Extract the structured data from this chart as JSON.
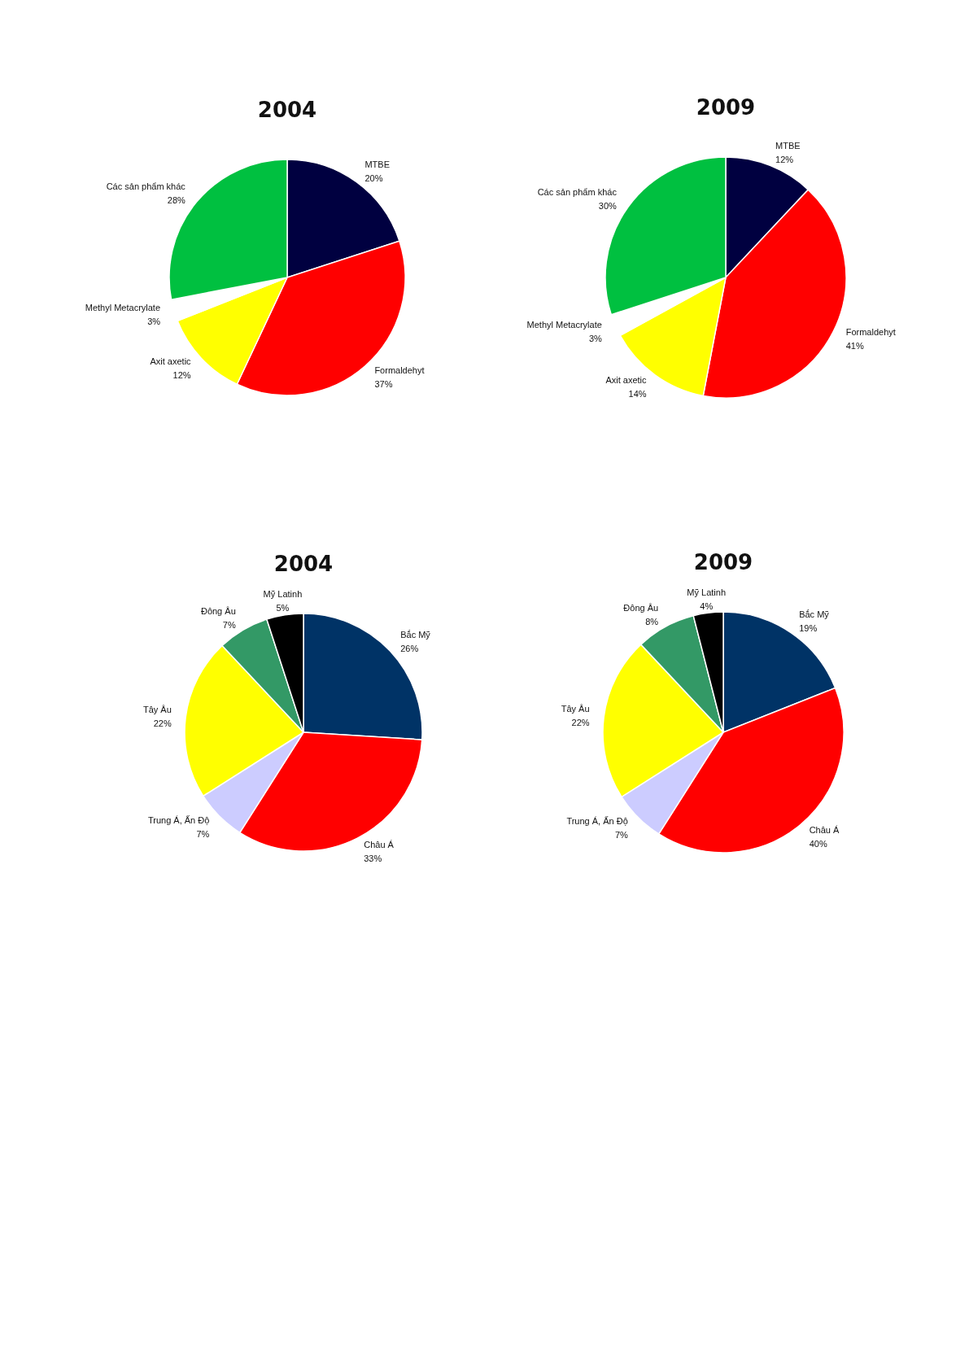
{
  "chart_data": [
    {
      "type": "pie",
      "title": "2004",
      "categories": [
        "MTBE",
        "Formaldehyt",
        "Axit axetic",
        "Methyl Metacrylate",
        "Các sản phẩm khác"
      ],
      "values": [
        20,
        37,
        12,
        3,
        28
      ],
      "value_labels": [
        "20%",
        "37%",
        "12%",
        "3%",
        "28%"
      ],
      "colors": [
        "#000040",
        "#ff0000",
        "#ffff00",
        "#ffffff",
        "#00c040"
      ]
    },
    {
      "type": "pie",
      "title": "2009",
      "categories": [
        "MTBE",
        "Formaldehyt",
        "Axit axetic",
        "Methyl Metacrylate",
        "Các sản phẩm khác"
      ],
      "values": [
        12,
        41,
        14,
        3,
        30
      ],
      "value_labels": [
        "12%",
        "41%",
        "14%",
        "3%",
        "30%"
      ],
      "colors": [
        "#000040",
        "#ff0000",
        "#ffff00",
        "#ffffff",
        "#00c040"
      ]
    },
    {
      "type": "pie",
      "title": "2004",
      "categories": [
        "Bắc Mỹ",
        "Châu Á",
        "Trung Á, Ấn Độ",
        "Tây Âu",
        "Đông Âu",
        "Mỹ Latinh"
      ],
      "values": [
        26,
        33,
        7,
        22,
        7,
        5
      ],
      "value_labels": [
        "26%",
        "33%",
        "7%",
        "22%",
        "7%",
        "5%"
      ],
      "colors": [
        "#003366",
        "#ff0000",
        "#ccccff",
        "#ffff00",
        "#339966",
        "#000000"
      ]
    },
    {
      "type": "pie",
      "title": "2009",
      "categories": [
        "Bắc Mỹ",
        "Châu Á",
        "Trung Á, Ấn Độ",
        "Tây Âu",
        "Đông Âu",
        "Mỹ Latinh"
      ],
      "values": [
        19,
        40,
        7,
        22,
        8,
        4
      ],
      "value_labels": [
        "19%",
        "40%",
        "7%",
        "22%",
        "8%",
        "4%"
      ],
      "colors": [
        "#003366",
        "#ff0000",
        "#ccccff",
        "#ffff00",
        "#339966",
        "#000000"
      ]
    }
  ]
}
